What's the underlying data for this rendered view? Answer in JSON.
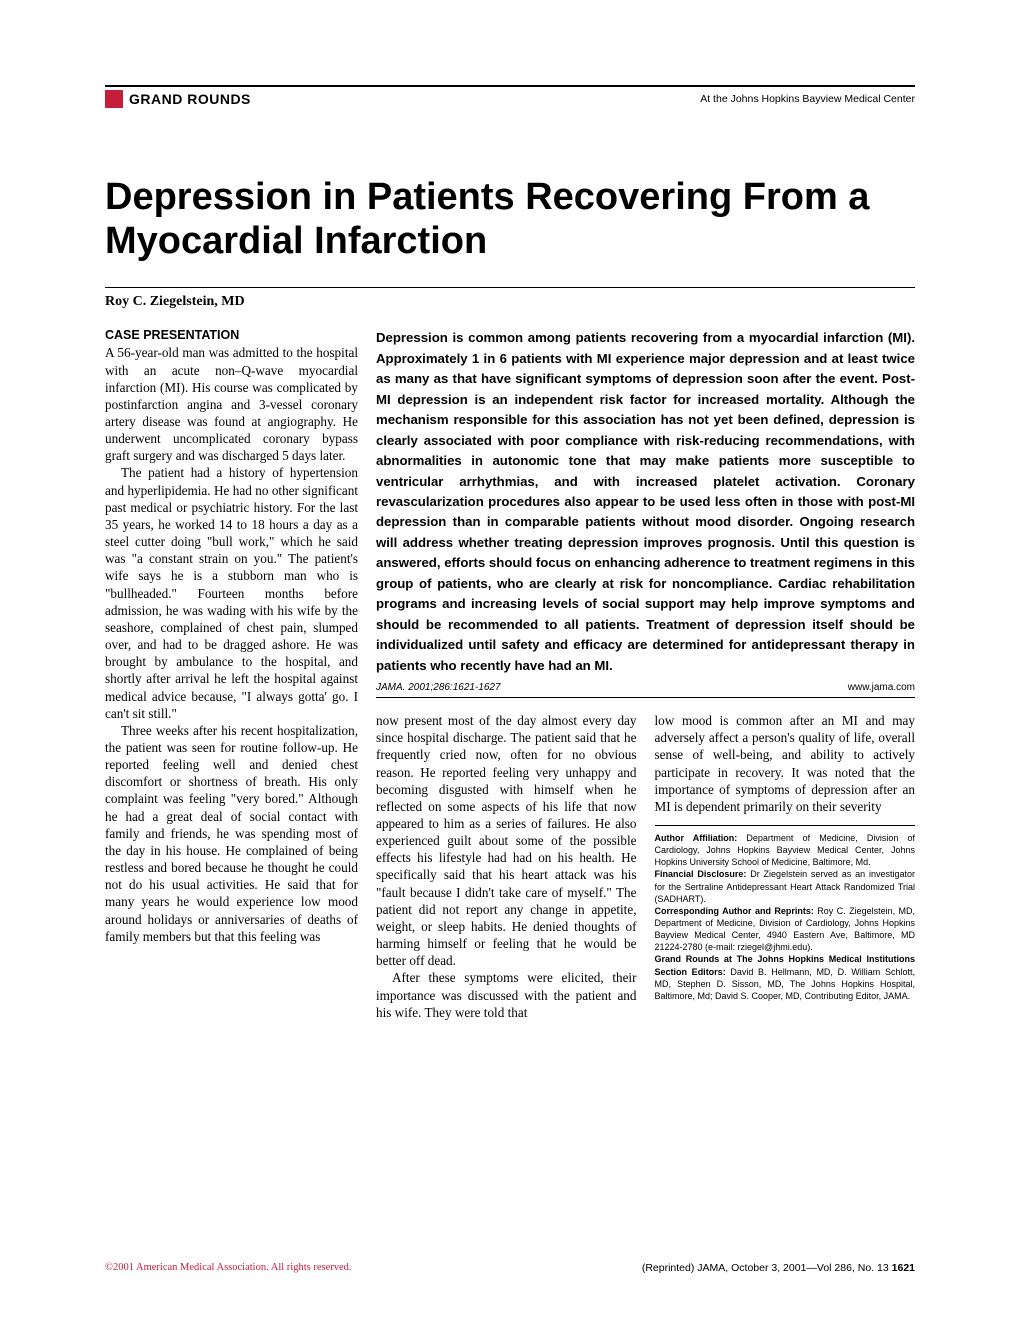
{
  "header": {
    "section_label": "GRAND ROUNDS",
    "right_text": "At the Johns Hopkins Bayview Medical Center",
    "accent_color": "#c41e3a"
  },
  "title": "Depression in Patients Recovering From a Myocardial Infarction",
  "author": "Roy C. Ziegelstein, MD",
  "abstract": "Depression is common among patients recovering from a myocardial infarction (MI). Approximately 1 in 6 patients with MI experience major depression and at least twice as many as that have significant symptoms of depression soon after the event. Post-MI depression is an independent risk factor for increased mortality. Although the mechanism responsible for this association has not yet been defined, depression is clearly associated with poor compliance with risk-reducing recommendations, with abnormalities in autonomic tone that may make patients more susceptible to ventricular arrhythmias, and with increased platelet activation. Coronary revascularization procedures also appear to be used less often in those with post-MI depression than in comparable patients without mood disorder. Ongoing research will address whether treating depression improves prognosis. Until this question is answered, efforts should focus on enhancing adherence to treatment regimens in this group of patients, who are clearly at risk for noncompliance. Cardiac rehabilitation programs and increasing levels of social support may help improve symptoms and should be recommended to all patients. Treatment of depression itself should be individualized until safety and efficacy are determined for antidepressant therapy in patients who recently have had an MI.",
  "citation": {
    "ref": "JAMA. 2001;286:1621-1627",
    "site": "www.jama.com"
  },
  "case_heading": "CASE PRESENTATION",
  "case": {
    "p1": "A 56-year-old man was admitted to the hospital with an acute non–Q-wave myocardial infarction (MI). His course was complicated by postinfarction angina and 3-vessel coronary artery disease was found at angiography. He underwent uncomplicated coronary bypass graft surgery and was discharged 5 days later.",
    "p2": "The patient had a history of hypertension and hyperlipidemia. He had no other significant past medical or psychiatric history. For the last 35 years, he worked 14 to 18 hours a day as a steel cutter doing \"bull work,\" which he said was \"a constant strain on you.\" The patient's wife says he is a stubborn man who is \"bullheaded.\" Fourteen months before admission, he was wading with his wife by the seashore, complained of chest pain, slumped over, and had to be dragged ashore. He was brought by ambulance to the hospital, and shortly after arrival he left the hospital against medical advice because, \"I always gotta' go. I can't sit still.\"",
    "p3": "Three weeks after his recent hospitalization, the patient was seen for routine follow-up. He reported feeling well and denied chest discomfort or shortness of breath. His only complaint was feeling \"very bored.\" Although he had a great deal of social contact with family and friends, he was spending most of the day in his house. He complained of being restless and bored because he thought he could not do his usual activities. He said that for many years he would experience low mood around holidays or anniversaries of deaths of family members but that this feeling was"
  },
  "body_cols": {
    "c1": "now present most of the day almost every day since hospital discharge. The patient said that he frequently cried now, often for no obvious reason. He reported feeling very unhappy and becoming disgusted with himself when he reflected on some aspects of his life that now appeared to him as a series of failures. He also experienced guilt about some of the possible effects his lifestyle had had on his health. He specifically said that his heart attack was his \"fault because I didn't take care of myself.\" The patient did not report any change in appetite, weight, or sleep habits. He denied thoughts of harming himself or feeling that he would be better off dead.",
    "c1b": "After these symptoms were elicited, their importance was discussed with the patient and his wife. They were told that",
    "c2": "low mood is common after an MI and may adversely affect a person's quality of life, overall sense of well-being, and ability to actively participate in recovery. It was noted that the importance of symptoms of depression after an MI is dependent primarily on their severity"
  },
  "affiliations": {
    "author_affil_label": "Author Affiliation:",
    "author_affil": " Department of Medicine, Division of Cardiology, Johns Hopkins Bayview Medical Center, Johns Hopkins University School of Medicine, Baltimore, Md.",
    "disclosure_label": "Financial Disclosure:",
    "disclosure": " Dr Ziegelstein served as an investigator for the Sertraline Antidepressant Heart Attack Randomized Trial (SADHART).",
    "corresponding_label": "Corresponding Author and Reprints:",
    "corresponding": " Roy C. Ziegelstein, MD, Department of Medicine, Division of Cardiology, Johns Hopkins Bayview Medical Center, 4940 Eastern Ave, Baltimore, MD 21224-2780 (e-mail: rziegel@jhmi.edu).",
    "editors_label": "Grand Rounds at The Johns Hopkins Medical Institutions Section Editors:",
    "editors": " David B. Hellmann, MD, D. William Schlott, MD, Stephen D. Sisson, MD, The Johns Hopkins Hospital, Baltimore, Md; David S. Cooper, MD, Contributing Editor, JAMA."
  },
  "footer": {
    "copyright": "©2001 American Medical Association. All rights reserved.",
    "reprint": "(Reprinted) JAMA, October 3, 2001—Vol 286, No. 13",
    "page": "1621"
  }
}
